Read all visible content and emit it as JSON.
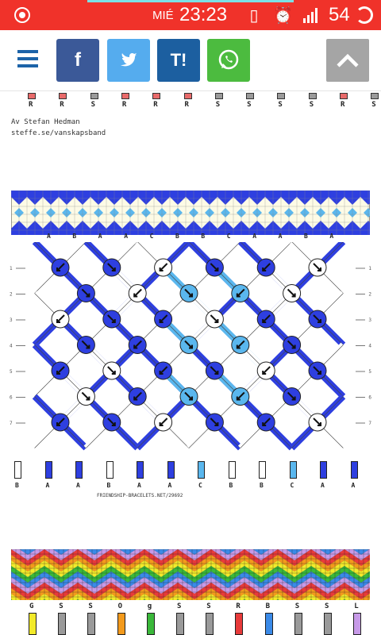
{
  "status_bar": {
    "day": "MIÉ",
    "time": "23:23",
    "battery": "54"
  },
  "toolbar": {
    "menu_icon": "hamburger-menu-icon",
    "facebook_label": "f",
    "twitter_icon": "twitter-bird-icon",
    "tuenti_label": "T!",
    "whatsapp_icon": "whatsapp-icon",
    "scroll_top_icon": "chevron-up-icon"
  },
  "pattern1_top": {
    "letters": [
      "R",
      "R",
      "S",
      "R",
      "R",
      "R",
      "S",
      "S",
      "S",
      "S",
      "R",
      "S"
    ],
    "credit_line1": "Av Stefan Hedman",
    "credit_line2": "steffe.se/vanskapsband"
  },
  "pattern2": {
    "top_letters": [
      "A",
      "B",
      "A",
      "A",
      "C",
      "B",
      "B",
      "C",
      "A",
      "A",
      "B",
      "A"
    ],
    "bottom_letters": [
      "B",
      "A",
      "A",
      "B",
      "A",
      "A",
      "C",
      "B",
      "B",
      "C",
      "A",
      "A"
    ],
    "source": "FRIENDSHIP-BRACELETS.NET/29692",
    "row_numbers": [
      "1",
      "2",
      "3",
      "4",
      "5",
      "6",
      "7"
    ],
    "colors": {
      "A": "#2e3fe0",
      "B": "#ffffff",
      "C": "#5ab7ee"
    }
  },
  "pattern3": {
    "letters": [
      "G",
      "S",
      "S",
      "O",
      "g",
      "S",
      "S",
      "R",
      "B",
      "S",
      "S",
      "L"
    ],
    "colors": {
      "G": "#f2ea2a",
      "S": "#9a9a9a",
      "O": "#f39a1c",
      "g": "#3ab83a",
      "R": "#e83a3a",
      "B": "#3a8ae8",
      "L": "#c79ae8"
    }
  }
}
